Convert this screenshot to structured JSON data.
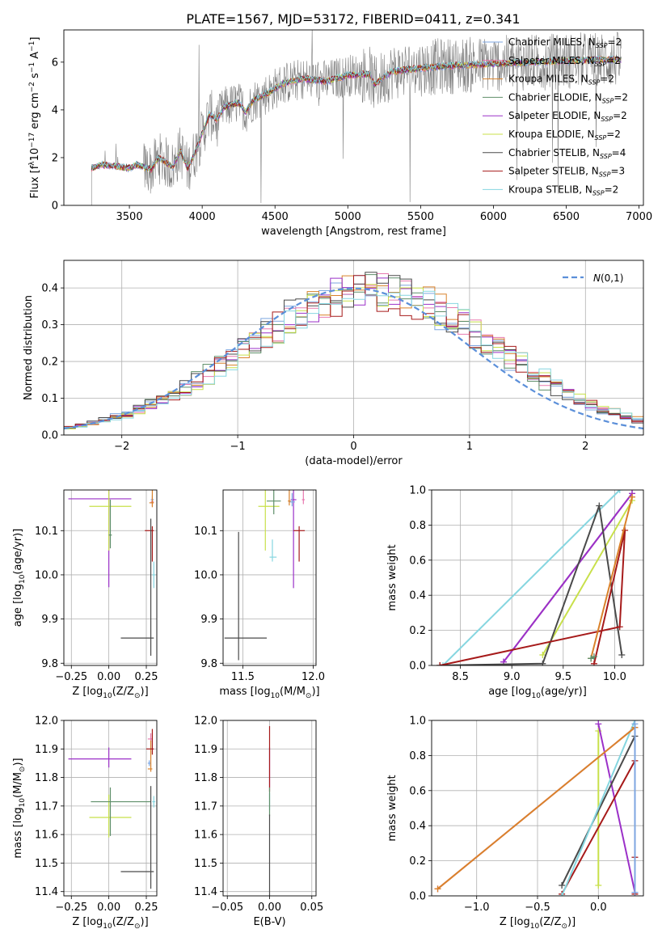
{
  "figure_title": "PLATE=1567, MJD=53172, FIBERID=0411, z=0.341",
  "colors": {
    "Chabrier MILES": "#7ea6e0",
    "Salpeter MILES": "#e87ab0",
    "Kroupa MILES": "#d9822b",
    "Chabrier ELODIE": "#5f8f6a",
    "Salpeter ELODIE": "#9b30c8",
    "Kroupa ELODIE": "#c8e04a",
    "Chabrier STELIB": "#4a4a4a",
    "Salpeter STELIB": "#a61a1a",
    "Kroupa STELIB": "#86d6e0",
    "data": "#808080",
    "normal": "#5b8fd9"
  },
  "chart_data": [
    {
      "id": "spectrum",
      "type": "line",
      "xlabel": "wavelength [Angstrom, rest frame]",
      "ylabel_parts": [
        "Flux [f",
        "λ",
        "10",
        "−17",
        " erg cm",
        "−2",
        " s",
        "−1",
        " A",
        "−1",
        "]"
      ],
      "xlim": [
        3050,
        7030
      ],
      "ylim": [
        0,
        7.35
      ],
      "xticks": [
        3500,
        4000,
        4500,
        5000,
        5500,
        6000,
        6500,
        7000
      ],
      "yticks": [
        0,
        2,
        4,
        6
      ],
      "legend_position": "top-right",
      "legend": [
        {
          "name": "Chabrier MILES",
          "nssp": "2"
        },
        {
          "name": "Salpeter MILES",
          "nssp": "2"
        },
        {
          "name": "Kroupa MILES",
          "nssp": "2"
        },
        {
          "name": "Chabrier ELODIE",
          "nssp": "2"
        },
        {
          "name": "Salpeter ELODIE",
          "nssp": "2"
        },
        {
          "name": "Kroupa ELODIE",
          "nssp": "2"
        },
        {
          "name": "Chabrier STELIB",
          "nssp": "4"
        },
        {
          "name": "Salpeter STELIB",
          "nssp": "3"
        },
        {
          "name": "Kroupa STELIB",
          "nssp": "2"
        }
      ],
      "data_wavelength_range": [
        3240,
        6880
      ],
      "continuum": [
        [
          3240,
          1.55
        ],
        [
          3300,
          1.7
        ],
        [
          3400,
          1.65
        ],
        [
          3500,
          1.55
        ],
        [
          3550,
          1.7
        ],
        [
          3650,
          1.5
        ],
        [
          3700,
          2.0
        ],
        [
          3800,
          1.6
        ],
        [
          3850,
          2.3
        ],
        [
          3900,
          1.55
        ],
        [
          3950,
          2.2
        ],
        [
          4000,
          3.0
        ],
        [
          4050,
          3.8
        ],
        [
          4100,
          3.6
        ],
        [
          4150,
          4.1
        ],
        [
          4250,
          4.3
        ],
        [
          4300,
          3.9
        ],
        [
          4350,
          4.4
        ],
        [
          4450,
          4.7
        ],
        [
          4550,
          5.1
        ],
        [
          4700,
          5.3
        ],
        [
          4860,
          5.2
        ],
        [
          5000,
          5.45
        ],
        [
          5150,
          5.5
        ],
        [
          5180,
          5.05
        ],
        [
          5300,
          5.6
        ],
        [
          5500,
          5.75
        ],
        [
          5700,
          5.85
        ],
        [
          5900,
          5.9
        ],
        [
          6100,
          5.95
        ],
        [
          6300,
          6.0
        ],
        [
          6500,
          6.05
        ],
        [
          6700,
          6.1
        ],
        [
          6880,
          6.1
        ]
      ]
    },
    {
      "id": "residual-histogram",
      "type": "histogram",
      "xlabel": "(data-model)/error",
      "ylabel": "Normed distribution",
      "xlim": [
        -2.5,
        2.5
      ],
      "ylim": [
        0,
        0.475
      ],
      "xticks": [
        -2,
        -1,
        0,
        1,
        2
      ],
      "yticks": [
        0.0,
        0.1,
        0.2,
        0.3,
        0.4
      ],
      "grid": true,
      "legend_position": "top-right",
      "legend": [
        "N(0,1)"
      ],
      "bin_width": 0.1
    },
    {
      "id": "age-vs-Z",
      "type": "errorbar",
      "xlabel_parts": [
        "Z [log",
        "10",
        "(Z/Z",
        "⊙",
        ")]"
      ],
      "ylabel_parts": [
        "age  [log",
        "10",
        "(age/yr)]"
      ],
      "xlim": [
        -0.3,
        0.32
      ],
      "ylim": [
        9.795,
        10.192
      ],
      "xticks": [
        -0.25,
        0.0,
        0.25
      ],
      "yticks": [
        9.8,
        9.9,
        10.0,
        10.1
      ],
      "grid": true,
      "points": [
        {
          "model": "Salpeter ELODIE",
          "x": 0.0,
          "xerr": [
            0.27,
            0.15
          ],
          "y": 10.172,
          "yerr": [
            0.2,
            0.2
          ]
        },
        {
          "model": "Kroupa ELODIE",
          "x": 0.0,
          "xerr": [
            0.13,
            0.15
          ],
          "y": 10.155,
          "yerr": [
            0.1,
            0.1
          ]
        },
        {
          "model": "Chabrier ELODIE",
          "x": 0.01,
          "xerr": [
            0.01,
            0.01
          ],
          "y": 10.09,
          "yerr": [
            0.03,
            0.08
          ]
        },
        {
          "model": "Chabrier MILES",
          "x": 0.29,
          "xerr": [
            0.01,
            0.01
          ],
          "y": 10.17,
          "yerr": [
            0.01,
            0.01
          ]
        },
        {
          "model": "Salpeter MILES",
          "x": 0.29,
          "xerr": [
            0.01,
            0.01
          ],
          "y": 10.165,
          "yerr": [
            0.01,
            0.01
          ]
        },
        {
          "model": "Kroupa MILES",
          "x": 0.29,
          "xerr": [
            0.02,
            0.01
          ],
          "y": 10.163,
          "yerr": [
            0.01,
            0.1
          ]
        },
        {
          "model": "Salpeter STELIB",
          "x": 0.29,
          "xerr": [
            0.05,
            0.01
          ],
          "y": 10.1,
          "yerr": [
            0.07,
            0.01
          ]
        },
        {
          "model": "Kroupa STELIB",
          "x": 0.3,
          "xerr": [
            0.01,
            0.01
          ],
          "y": 10.0,
          "yerr": [
            0.03,
            0.03
          ]
        },
        {
          "model": "Chabrier STELIB",
          "x": 0.28,
          "xerr": [
            0.2,
            0.02
          ],
          "y": 9.857,
          "yerr": [
            0.04,
            0.27
          ]
        }
      ]
    },
    {
      "id": "age-vs-mass",
      "type": "errorbar",
      "xlabel_parts": [
        "mass [log",
        "10",
        "(M/M",
        "⊙",
        ")]"
      ],
      "xlim": [
        11.36,
        12.02
      ],
      "ylim": [
        9.795,
        10.192
      ],
      "xticks": [
        11.5,
        12.0
      ],
      "yticks": [
        9.8,
        9.9,
        10.0,
        10.1
      ],
      "grid": true,
      "points": [
        {
          "model": "Salpeter ELODIE",
          "x": 11.86,
          "xerr": [
            0.02,
            0.02
          ],
          "y": 10.17,
          "yerr": [
            0.2,
            0.2
          ]
        },
        {
          "model": "Kroupa ELODIE",
          "x": 11.66,
          "xerr": [
            0.05,
            0.1
          ],
          "y": 10.155,
          "yerr": [
            0.1,
            0.1
          ]
        },
        {
          "model": "Chabrier ELODIE",
          "x": 11.72,
          "xerr": [
            0.05,
            0.05
          ],
          "y": 10.167,
          "yerr": [
            0.03,
            0.05
          ]
        },
        {
          "model": "Chabrier MILES",
          "x": 11.85,
          "xerr": [
            0.02,
            0.02
          ],
          "y": 10.165,
          "yerr": [
            0.01,
            0.02
          ]
        },
        {
          "model": "Salpeter MILES",
          "x": 11.93,
          "xerr": [
            0.01,
            0.01
          ],
          "y": 10.17,
          "yerr": [
            0.01,
            0.03
          ]
        },
        {
          "model": "Kroupa MILES",
          "x": 11.83,
          "xerr": [
            0.01,
            0.01
          ],
          "y": 10.167,
          "yerr": [
            0.01,
            0.05
          ]
        },
        {
          "model": "Salpeter STELIB",
          "x": 11.9,
          "xerr": [
            0.04,
            0.04
          ],
          "y": 10.1,
          "yerr": [
            0.07,
            0.01
          ]
        },
        {
          "model": "Kroupa STELIB",
          "x": 11.71,
          "xerr": [
            0.02,
            0.03
          ],
          "y": 10.04,
          "yerr": [
            0.01,
            0.04
          ]
        },
        {
          "model": "Chabrier STELIB",
          "x": 11.47,
          "xerr": [
            0.1,
            0.2
          ],
          "y": 9.857,
          "yerr": [
            0.05,
            0.24
          ]
        }
      ]
    },
    {
      "id": "mass-weight-vs-age",
      "type": "line",
      "xlabel_parts": [
        "age  [log",
        "10",
        "(age/yr)]"
      ],
      "ylabel": "mass weight",
      "xlim": [
        8.22,
        10.28
      ],
      "ylim": [
        0,
        1
      ],
      "xticks": [
        8.5,
        9.0,
        9.5,
        10.0
      ],
      "yticks": [
        0.0,
        0.2,
        0.4,
        0.6,
        0.8,
        1.0
      ],
      "grid": true,
      "series": [
        {
          "model": "Kroupa STELIB",
          "x": [
            8.33,
            10.05
          ],
          "y": [
            0.0,
            1.0
          ]
        },
        {
          "model": "Chabrier MILES",
          "x": [
            8.92,
            10.17
          ],
          "y": [
            0.02,
            0.98
          ]
        },
        {
          "model": "Salpeter MILES",
          "x": [
            8.92,
            10.17
          ],
          "y": [
            0.02,
            0.98
          ]
        },
        {
          "model": "Salpeter ELODIE",
          "x": [
            8.92,
            10.17
          ],
          "y": [
            0.02,
            0.98
          ]
        },
        {
          "model": "Kroupa ELODIE",
          "x": [
            9.3,
            10.17
          ],
          "y": [
            0.06,
            0.94
          ]
        },
        {
          "model": "Chabrier STELIB",
          "x": [
            8.3,
            9.3,
            9.85,
            10.07
          ],
          "y": [
            0.0,
            0.01,
            0.91,
            0.06
          ]
        },
        {
          "model": "Salpeter STELIB",
          "x": [
            8.3,
            10.05,
            10.1,
            9.8
          ],
          "y": [
            0.0,
            0.22,
            0.77,
            0.01
          ]
        },
        {
          "model": "Kroupa MILES",
          "x": [
            9.77,
            10.17
          ],
          "y": [
            0.04,
            0.96
          ]
        },
        {
          "model": "Chabrier ELODIE",
          "x": [
            9.77,
            9.8
          ],
          "y": [
            0.04,
            0.05
          ]
        }
      ]
    },
    {
      "id": "mass-vs-Z",
      "type": "errorbar",
      "xlabel_parts": [
        "Z [log",
        "10",
        "(Z/Z",
        "⊙",
        ")]"
      ],
      "ylabel_parts": [
        "mass [log",
        "10",
        "(M/M",
        "⊙",
        ")]"
      ],
      "xlim": [
        -0.3,
        0.32
      ],
      "ylim": [
        11.385,
        12.0
      ],
      "xticks": [
        -0.25,
        0.0,
        0.25
      ],
      "yticks": [
        11.4,
        11.5,
        11.6,
        11.7,
        11.8,
        11.9,
        12.0
      ],
      "grid": true,
      "points": [
        {
          "model": "Salpeter ELODIE",
          "x": 0.0,
          "xerr": [
            0.27,
            0.15
          ],
          "y": 11.865,
          "yerr": [
            0.03,
            0.04
          ]
        },
        {
          "model": "Kroupa ELODIE",
          "x": 0.0,
          "xerr": [
            0.13,
            0.15
          ],
          "y": 11.66,
          "yerr": [
            0.07,
            0.08
          ]
        },
        {
          "model": "Chabrier ELODIE",
          "x": 0.01,
          "xerr": [
            0.13,
            0.27
          ],
          "y": 11.715,
          "yerr": [
            0.12,
            0.05
          ]
        },
        {
          "model": "Chabrier MILES",
          "x": 0.27,
          "xerr": [
            0.01,
            0.01
          ],
          "y": 11.85,
          "yerr": [
            0.01,
            0.01
          ]
        },
        {
          "model": "Salpeter MILES",
          "x": 0.28,
          "xerr": [
            0.02,
            0.01
          ],
          "y": 11.935,
          "yerr": [
            0.01,
            0.02
          ]
        },
        {
          "model": "Kroupa MILES",
          "x": 0.28,
          "xerr": [
            0.02,
            0.01
          ],
          "y": 11.83,
          "yerr": [
            0.01,
            0.1
          ]
        },
        {
          "model": "Salpeter STELIB",
          "x": 0.29,
          "xerr": [
            0.04,
            0.01
          ],
          "y": 11.9,
          "yerr": [
            0.02,
            0.07
          ]
        },
        {
          "model": "Kroupa STELIB",
          "x": 0.3,
          "xerr": [
            0.01,
            0.01
          ],
          "y": 11.715,
          "yerr": [
            0.02,
            0.02
          ]
        },
        {
          "model": "Chabrier STELIB",
          "x": 0.28,
          "xerr": [
            0.2,
            0.02
          ],
          "y": 11.47,
          "yerr": [
            0.06,
            0.3
          ]
        }
      ]
    },
    {
      "id": "mass-vs-ebv",
      "type": "errorbar",
      "xlabel": "E(B-V)",
      "xlim": [
        -0.055,
        0.055
      ],
      "ylim": [
        11.385,
        12.0
      ],
      "xticks": [
        -0.05,
        0.0,
        0.05
      ],
      "yticks": [
        11.4,
        11.5,
        11.6,
        11.7,
        11.8,
        11.9,
        12.0
      ],
      "grid": true,
      "points": [
        {
          "model": "Salpeter ELODIE",
          "x": 0.0,
          "xerr": [
            0,
            0
          ],
          "y": 11.865,
          "yerr": [
            0.1,
            0.04
          ]
        },
        {
          "model": "Salpeter STELIB",
          "x": 0.0,
          "xerr": [
            0,
            0
          ],
          "y": 11.9,
          "yerr": [
            0.15,
            0.08
          ]
        },
        {
          "model": "Kroupa STELIB",
          "x": 0.0,
          "xerr": [
            0,
            0
          ],
          "y": 11.715,
          "yerr": [
            0.03,
            0.03
          ]
        },
        {
          "model": "Chabrier ELODIE",
          "x": 0.0,
          "xerr": [
            0,
            0
          ],
          "y": 11.715,
          "yerr": [
            0.05,
            0.05
          ]
        },
        {
          "model": "Chabrier STELIB",
          "x": 0.0,
          "xerr": [
            0,
            0
          ],
          "y": 11.47,
          "yerr": [
            0.1,
            0.2
          ]
        }
      ]
    },
    {
      "id": "mass-weight-vs-Z",
      "type": "line",
      "xlabel_parts": [
        "Z [log",
        "10",
        "(Z/Z",
        "⊙",
        ")]"
      ],
      "ylabel": "mass weight",
      "xlim": [
        -1.37,
        0.37
      ],
      "ylim": [
        0,
        1
      ],
      "xticks": [
        -1.0,
        -0.5,
        0.0
      ],
      "yticks": [
        0.0,
        0.2,
        0.4,
        0.6,
        0.8,
        1.0
      ],
      "grid": true,
      "series": [
        {
          "model": "Kroupa ELODIE",
          "x": [
            0.0,
            0.0
          ],
          "y": [
            0.94,
            0.06
          ]
        },
        {
          "model": "Salpeter ELODIE",
          "x": [
            0.0,
            0.3
          ],
          "y": [
            0.98,
            0.02
          ]
        },
        {
          "model": "Chabrier STELIB",
          "x": [
            -0.3,
            0.3
          ],
          "y": [
            0.06,
            0.91
          ]
        },
        {
          "model": "Salpeter STELIB",
          "x": [
            -0.3,
            0.3,
            0.3,
            0.3
          ],
          "y": [
            0.01,
            0.77,
            0.22,
            0.01
          ]
        },
        {
          "model": "Kroupa STELIB",
          "x": [
            -0.3,
            0.3
          ],
          "y": [
            0.0,
            1.0
          ]
        },
        {
          "model": "Salpeter MILES",
          "x": [
            -1.32,
            0.3
          ],
          "y": [
            0.04,
            0.96
          ]
        },
        {
          "model": "Kroupa MILES",
          "x": [
            -1.32,
            0.3
          ],
          "y": [
            0.04,
            0.96
          ]
        },
        {
          "model": "Chabrier MILES",
          "x": [
            0.3,
            0.3
          ],
          "y": [
            0.02,
            0.98
          ]
        }
      ]
    }
  ]
}
